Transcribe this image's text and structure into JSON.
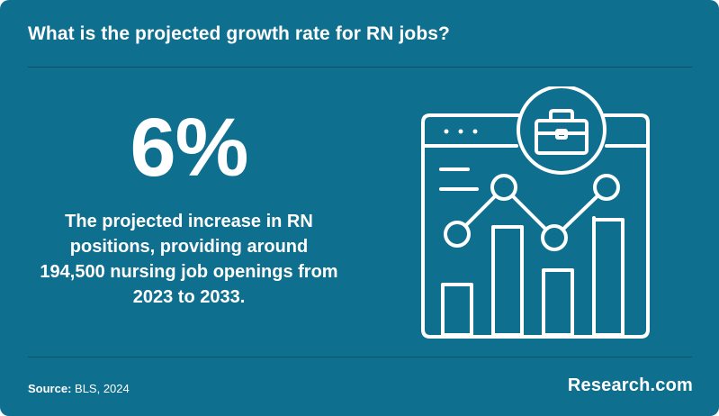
{
  "header": {
    "question": "What is the projected growth rate for RN jobs?"
  },
  "stat": {
    "value": "6%",
    "description": "The projected increase in RN positions, providing around 194,500 nursing job openings from 2023 to 2033."
  },
  "illustration": {
    "icon": "browser-chart-briefcase-icon",
    "bar_levels": [
      0.35,
      0.75,
      0.45,
      0.8
    ]
  },
  "footer": {
    "source_label": "Source:",
    "source_value": "BLS, 2024",
    "brand": "Research.com"
  },
  "colors": {
    "background": "#0f6f8e",
    "divider": "#0b4f66",
    "foreground": "#ffffff"
  }
}
